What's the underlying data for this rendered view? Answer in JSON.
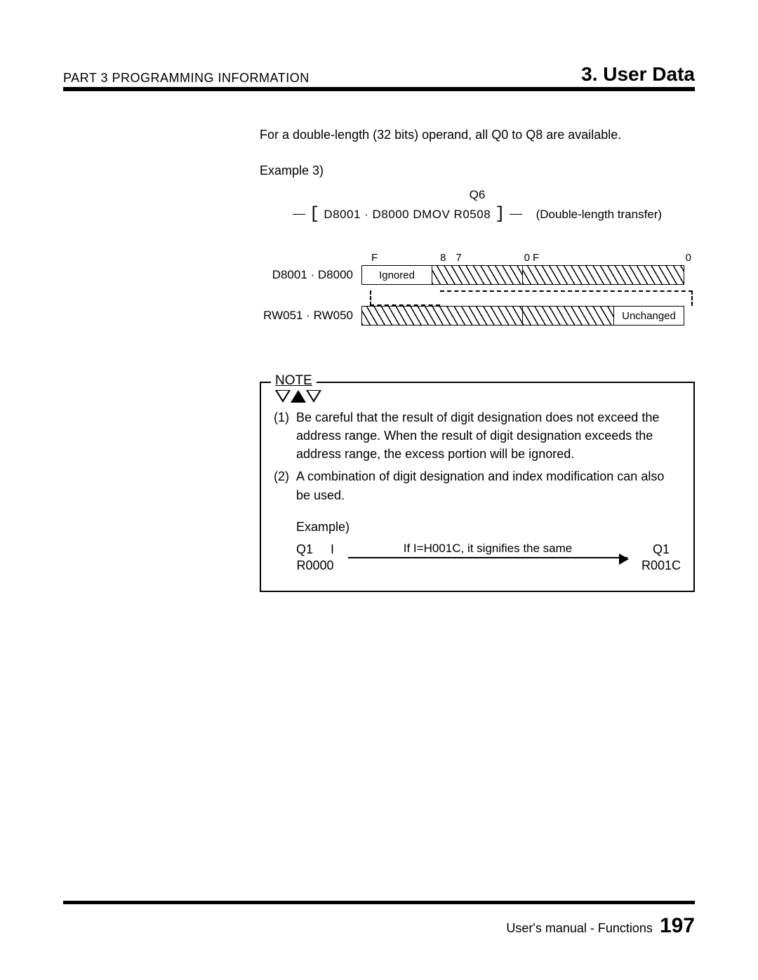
{
  "header": {
    "part_label": "PART 3  PROGRAMMING  INFORMATION",
    "section_title": "3. User Data"
  },
  "intro_text": "For a double-length (32 bits) operand, all Q0 to Q8 are available.",
  "example": {
    "label": "Example 3)",
    "q_label": "Q6",
    "instruction": "D8001 · D8000  DMOV  R0508",
    "annotation": "(Double-length transfer)"
  },
  "bitdiag": {
    "ticks": {
      "F": "F",
      "eight": "8",
      "seven": "7",
      "zero": "0"
    },
    "row1": {
      "label": "D8001 · D8000",
      "cell_ignored": "Ignored"
    },
    "row2": {
      "label": "RW051 · RW050",
      "cell_unchanged": "Unchanged"
    }
  },
  "note": {
    "title": "NOTE",
    "items": [
      {
        "num": "(1)",
        "text": "Be careful that the result of digit designation does not exceed the address range.  When the result of digit designation exceeds the address range, the excess portion will be ignored."
      },
      {
        "num": "(2)",
        "text": "A combination of digit designation and index modification can also be used."
      }
    ],
    "example": {
      "label": "Example)",
      "left_top": "Q1",
      "left_mid": "I",
      "left_bot": "R0000",
      "arrow_text": "If I=H001C, it signifies the same",
      "right_top": "Q1",
      "right_bot": "R001C"
    }
  },
  "footer": {
    "text": "User's manual - Functions",
    "page": "197"
  }
}
